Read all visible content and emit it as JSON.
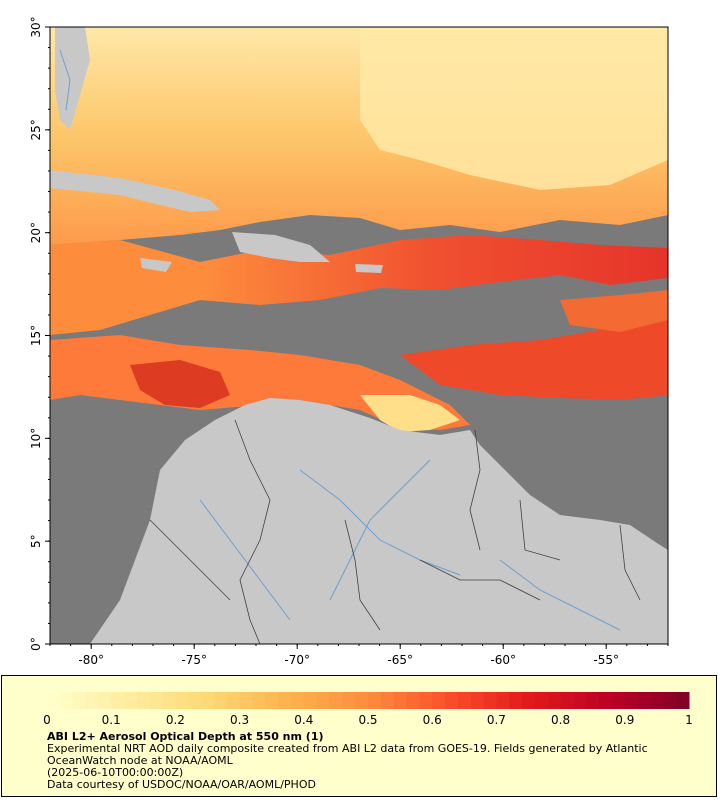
{
  "map": {
    "lon_range": [
      -82,
      -52
    ],
    "lat_range": [
      0,
      30
    ],
    "x_ticks": [
      {
        "value": -80,
        "label": "-80°"
      },
      {
        "value": -75,
        "label": "-75°"
      },
      {
        "value": -70,
        "label": "-70°"
      },
      {
        "value": -65,
        "label": "-65°"
      },
      {
        "value": -60,
        "label": "-60°"
      },
      {
        "value": -55,
        "label": "-55°"
      }
    ],
    "y_ticks": [
      {
        "value": 0,
        "label": "0°"
      },
      {
        "value": 5,
        "label": "5°"
      },
      {
        "value": 10,
        "label": "10°"
      },
      {
        "value": 15,
        "label": "15°"
      },
      {
        "value": 20,
        "label": "20°"
      },
      {
        "value": 25,
        "label": "25°"
      },
      {
        "value": 30,
        "label": "30°"
      }
    ],
    "colors": {
      "no_data_ocean": "#7a7a7a",
      "land": "#c8c8c8",
      "rivers": "#6c9fd0",
      "borders": "#404040"
    }
  },
  "colorbar": {
    "ticks": [
      "0",
      "0.1",
      "0.2",
      "0.3",
      "0.4",
      "0.5",
      "0.6",
      "0.7",
      "0.8",
      "0.9",
      "1"
    ],
    "min": 0,
    "max": 1,
    "colors": [
      "#ffffcc",
      "#ffeda0",
      "#fed976",
      "#feb24c",
      "#fd8d3c",
      "#fc4e2a",
      "#e31a1c",
      "#bd0026",
      "#800026"
    ]
  },
  "legend": {
    "title": "ABI L2+ Aerosol Optical Depth at 550 nm (1)",
    "description": "Experimental NRT AOD daily composite created from ABI L2 data from GOES-19. Fields generated by Atlantic",
    "description2": "OceanWatch node at NOAA/AOML",
    "date": "(2025-06-10T00:00:00Z)",
    "credit": "Data courtesy of USDOC/NOAA/OAR/AOML/PHOD"
  }
}
